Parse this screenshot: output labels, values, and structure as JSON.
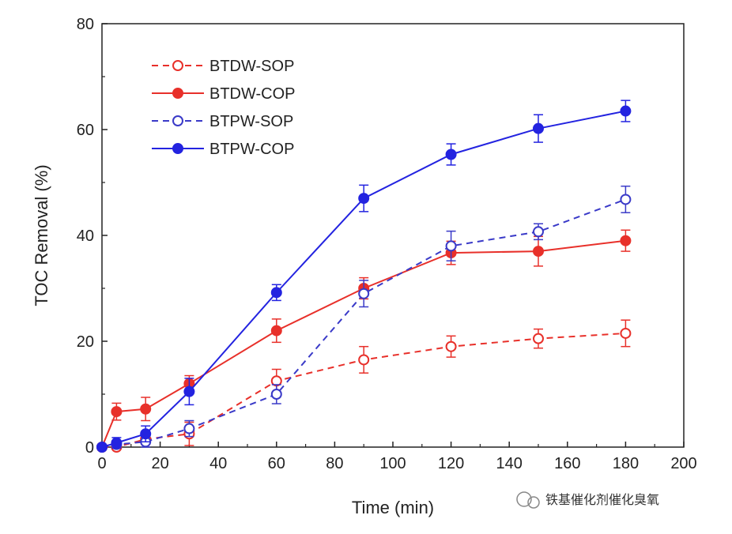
{
  "chart_data": {
    "type": "line",
    "xlabel": "Time (min)",
    "ylabel": "TOC Removal (%)",
    "xlim": [
      0,
      200
    ],
    "ylim": [
      0,
      80
    ],
    "xticks": [
      0,
      20,
      40,
      60,
      80,
      100,
      120,
      140,
      160,
      180,
      200
    ],
    "yticks": [
      0,
      20,
      40,
      60,
      80
    ],
    "grid": false,
    "legend_position": "top-left",
    "x": [
      0,
      5,
      15,
      30,
      60,
      90,
      120,
      150,
      180
    ],
    "series": [
      {
        "name": "BTDW-SOP",
        "color": "#e8302a",
        "dashed": true,
        "filled": false,
        "values": [
          0,
          0,
          1.5,
          2.5,
          12.5,
          16.5,
          19,
          20.5,
          21.5
        ],
        "errors": [
          0,
          0,
          1,
          2.2,
          2.2,
          2.5,
          2,
          1.8,
          2.5
        ]
      },
      {
        "name": "BTDW-COP",
        "color": "#e8302a",
        "dashed": false,
        "filled": true,
        "values": [
          0,
          6.7,
          7.2,
          12,
          22,
          30,
          36.7,
          37,
          39
        ],
        "errors": [
          0,
          1.6,
          2.2,
          1.5,
          2.2,
          2,
          2.2,
          2.8,
          2
        ]
      },
      {
        "name": "BTPW-SOP",
        "color": "#3a3ac8",
        "dashed": true,
        "filled": false,
        "values": [
          0,
          0.5,
          1,
          3.5,
          10,
          29,
          38,
          40.7,
          46.8
        ],
        "errors": [
          0,
          0.5,
          1,
          1.5,
          1.8,
          2.5,
          2.8,
          1.5,
          2.5
        ]
      },
      {
        "name": "BTPW-COP",
        "color": "#2323e0",
        "dashed": false,
        "filled": true,
        "values": [
          0,
          0.8,
          2.5,
          10.5,
          29.2,
          47,
          55.3,
          60.2,
          63.5
        ],
        "errors": [
          0,
          1,
          1.5,
          2.5,
          1.5,
          2.5,
          2,
          2.6,
          2
        ]
      }
    ]
  },
  "watermark": "铁基催化剂催化臭氧"
}
